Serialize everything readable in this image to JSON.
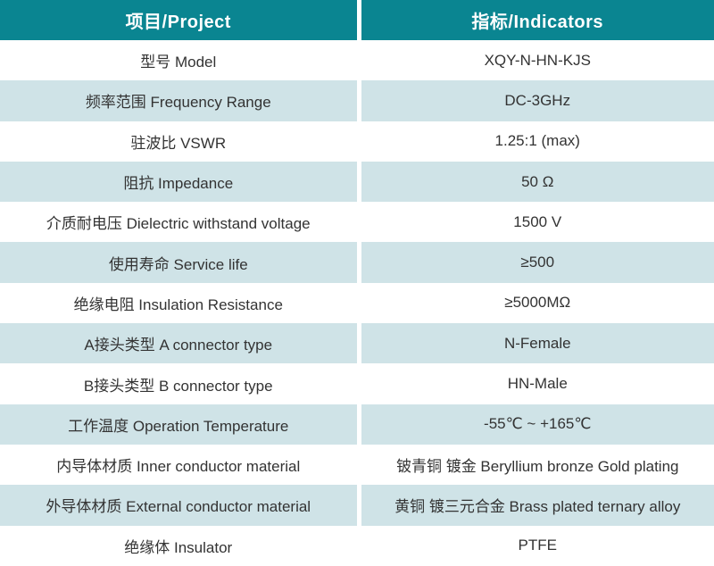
{
  "table": {
    "title": "product-specification-table",
    "columns": {
      "project": "项目/Project",
      "indicator": "指标/Indicators"
    },
    "rows": [
      {
        "project": "型号 Model",
        "indicator": "XQY-N-HN-KJS"
      },
      {
        "project": "频率范围 Frequency Range",
        "indicator": "DC-3GHz"
      },
      {
        "project": "驻波比 VSWR",
        "indicator": "1.25:1 (max)"
      },
      {
        "project": "阻抗 Impedance",
        "indicator": "50 Ω"
      },
      {
        "project": "介质耐电压 Dielectric withstand voltage",
        "indicator": "1500 V"
      },
      {
        "project": "使用寿命 Service life",
        "indicator": "≥500"
      },
      {
        "project": "绝缘电阻 Insulation Resistance",
        "indicator": "≥5000MΩ"
      },
      {
        "project": "A接头类型 A connector type",
        "indicator": "N-Female"
      },
      {
        "project": "B接头类型 B connector type",
        "indicator": "HN-Male"
      },
      {
        "project": "工作温度 Operation Temperature",
        "indicator": "-55℃ ~ +165℃"
      },
      {
        "project": "内导体材质 Inner conductor material",
        "indicator": "铍青铜 镀金 Beryllium bronze Gold plating"
      },
      {
        "project": "外导体材质 External conductor material",
        "indicator": "黄铜 镀三元合金 Brass plated ternary alloy"
      },
      {
        "project": "绝缘体 Insulator",
        "indicator": "PTFE"
      }
    ],
    "colors": {
      "header_bg": "#0a8591",
      "header_text": "#ffffff",
      "row_bg": "#ffffff",
      "row_alt_bg": "#cfe3e7",
      "body_text": "#333333",
      "divider": "#ffffff"
    }
  }
}
